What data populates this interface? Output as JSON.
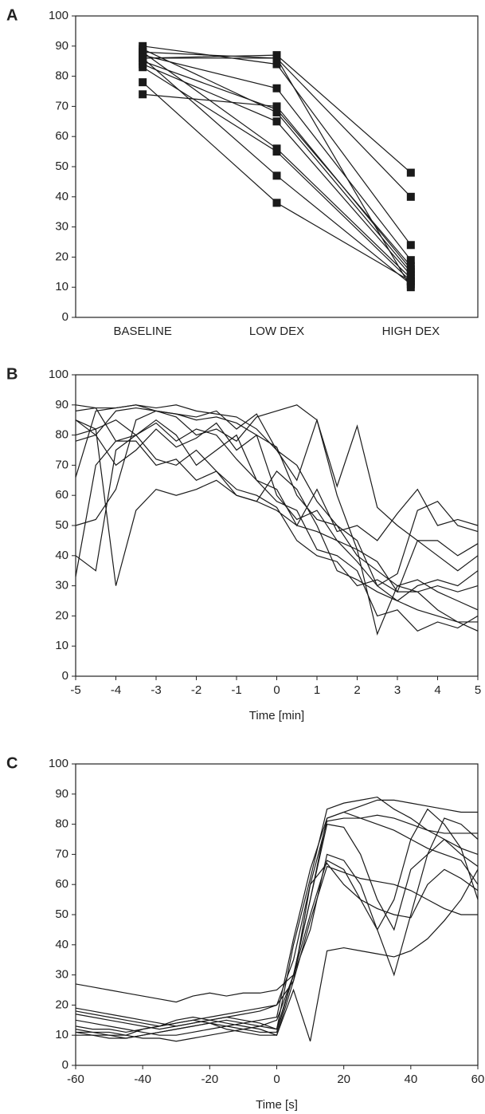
{
  "chart_data": [
    {
      "type": "line",
      "panel_label": "A",
      "marker": "square",
      "color": "#1a1a1a",
      "categories": [
        "BASELINE",
        "LOW DEX",
        "HIGH DEX"
      ],
      "series": [
        {
          "values": [
            86,
            87,
            48
          ]
        },
        {
          "values": [
            88,
            86,
            40
          ]
        },
        {
          "values": [
            90,
            84,
            24
          ]
        },
        {
          "values": [
            87,
            76,
            19
          ]
        },
        {
          "values": [
            85,
            69,
            17
          ]
        },
        {
          "values": [
            89,
            68,
            15
          ]
        },
        {
          "values": [
            84,
            65,
            14
          ]
        },
        {
          "values": [
            88,
            56,
            13
          ]
        },
        {
          "values": [
            83,
            55,
            12
          ]
        },
        {
          "values": [
            86,
            47,
            11
          ]
        },
        {
          "values": [
            78,
            38,
            12
          ]
        },
        {
          "values": [
            74,
            70,
            16
          ]
        },
        {
          "values": [
            86,
            86,
            10
          ]
        }
      ],
      "ylim": [
        0,
        100
      ],
      "yticks": [
        0,
        10,
        20,
        30,
        40,
        50,
        60,
        70,
        80,
        90,
        100
      ]
    },
    {
      "type": "line",
      "panel_label": "B",
      "color": "#1a1a1a",
      "x_label": "Time [min]",
      "x": [
        -5,
        -4.5,
        -4,
        -3.5,
        -3,
        -2.5,
        -2,
        -1.5,
        -1,
        -0.5,
        0,
        0.5,
        1,
        1.5,
        2,
        2.5,
        3,
        3.5,
        4,
        4.5,
        5
      ],
      "series": [
        {
          "values": [
            66,
            88,
            89,
            90,
            88,
            87,
            85,
            86,
            84,
            80,
            76,
            60,
            52,
            50,
            40,
            35,
            30,
            28,
            30,
            28,
            30
          ]
        },
        {
          "values": [
            80,
            82,
            30,
            55,
            62,
            60,
            62,
            65,
            60,
            58,
            55,
            50,
            48,
            45,
            38,
            30,
            25,
            22,
            20,
            18,
            15
          ]
        },
        {
          "values": [
            50,
            52,
            62,
            85,
            88,
            86,
            80,
            82,
            78,
            86,
            88,
            90,
            85,
            60,
            42,
            14,
            30,
            32,
            28,
            25,
            22
          ]
        },
        {
          "values": [
            88,
            89,
            89,
            90,
            89,
            90,
            88,
            87,
            86,
            82,
            75,
            70,
            58,
            50,
            45,
            30,
            34,
            55,
            58,
            50,
            48
          ]
        },
        {
          "values": [
            78,
            80,
            70,
            75,
            82,
            76,
            79,
            84,
            75,
            80,
            60,
            52,
            55,
            45,
            42,
            38,
            28,
            45,
            40,
            35,
            40
          ]
        },
        {
          "values": [
            85,
            82,
            85,
            80,
            84,
            78,
            82,
            80,
            72,
            65,
            62,
            50,
            62,
            48,
            50,
            45,
            54,
            62,
            50,
            52,
            50
          ]
        },
        {
          "values": [
            40,
            35,
            75,
            80,
            72,
            70,
            75,
            68,
            62,
            60,
            56,
            45,
            40,
            38,
            30,
            32,
            28,
            28,
            22,
            18,
            18
          ]
        },
        {
          "values": [
            33,
            70,
            78,
            78,
            70,
            72,
            65,
            68,
            60,
            58,
            68,
            62,
            50,
            35,
            32,
            28,
            25,
            30,
            32,
            30,
            35
          ]
        },
        {
          "values": [
            85,
            80,
            88,
            89,
            88,
            87,
            86,
            88,
            82,
            87,
            75,
            65,
            85,
            63,
            83,
            56,
            50,
            45,
            45,
            40,
            44
          ]
        },
        {
          "values": [
            90,
            89,
            78,
            80,
            85,
            80,
            70,
            75,
            80,
            65,
            58,
            55,
            42,
            40,
            35,
            20,
            22,
            15,
            18,
            16,
            20
          ]
        }
      ],
      "xlim": [
        -5,
        5
      ],
      "xticks": [
        -5,
        -4,
        -3,
        -2,
        -1,
        0,
        1,
        2,
        3,
        4,
        5
      ],
      "ylim": [
        0,
        100
      ],
      "yticks": [
        0,
        10,
        20,
        30,
        40,
        50,
        60,
        70,
        80,
        90,
        100
      ]
    },
    {
      "type": "line",
      "panel_label": "C",
      "color": "#1a1a1a",
      "x_label": "Time [s]",
      "x": [
        -60,
        -55,
        -50,
        -45,
        -40,
        -35,
        -30,
        -25,
        -20,
        -15,
        -10,
        -5,
        0,
        5,
        10,
        15,
        20,
        25,
        30,
        35,
        40,
        45,
        50,
        55,
        60
      ],
      "series": [
        {
          "values": [
            27,
            26,
            25,
            24,
            23,
            22,
            21,
            23,
            24,
            23,
            24,
            24,
            25,
            30,
            55,
            82,
            84,
            86,
            88,
            88,
            87,
            86,
            85,
            84,
            84
          ]
        },
        {
          "values": [
            19,
            18,
            17,
            16,
            15,
            14,
            13,
            14,
            15,
            16,
            17,
            18,
            20,
            35,
            60,
            81,
            82,
            82,
            83,
            82,
            80,
            78,
            77,
            77,
            77
          ]
        },
        {
          "values": [
            11,
            11,
            10,
            10,
            9,
            9,
            8,
            9,
            10,
            11,
            12,
            13,
            15,
            30,
            50,
            68,
            65,
            55,
            45,
            55,
            75,
            85,
            80,
            72,
            70
          ]
        },
        {
          "values": [
            12,
            11,
            11,
            10,
            12,
            13,
            15,
            16,
            15,
            14,
            13,
            12,
            10,
            25,
            8,
            38,
            39,
            38,
            37,
            36,
            38,
            42,
            48,
            55,
            65
          ]
        },
        {
          "values": [
            17,
            16,
            15,
            14,
            13,
            12,
            13,
            14,
            15,
            16,
            15,
            14,
            12,
            40,
            62,
            85,
            87,
            88,
            89,
            85,
            82,
            78,
            75,
            72,
            55
          ]
        },
        {
          "values": [
            10,
            10,
            9,
            9,
            10,
            11,
            12,
            13,
            14,
            15,
            14,
            13,
            12,
            30,
            45,
            70,
            68,
            60,
            45,
            30,
            50,
            70,
            82,
            80,
            75
          ]
        },
        {
          "values": [
            15,
            14,
            13,
            12,
            11,
            10,
            10,
            11,
            12,
            13,
            14,
            15,
            16,
            42,
            65,
            82,
            84,
            82,
            80,
            78,
            75,
            72,
            70,
            68,
            60
          ]
        },
        {
          "values": [
            11,
            10,
            10,
            9,
            10,
            11,
            12,
            13,
            14,
            12,
            11,
            10,
            10,
            28,
            60,
            67,
            60,
            55,
            52,
            50,
            49,
            60,
            65,
            62,
            58
          ]
        },
        {
          "values": [
            18,
            17,
            16,
            15,
            14,
            13,
            14,
            15,
            16,
            17,
            18,
            19,
            20,
            28,
            48,
            66,
            64,
            62,
            61,
            60,
            58,
            55,
            52,
            50,
            50
          ]
        },
        {
          "values": [
            13,
            12,
            12,
            11,
            12,
            13,
            14,
            15,
            14,
            13,
            12,
            11,
            11,
            30,
            55,
            80,
            79,
            70,
            55,
            45,
            65,
            70,
            75,
            70,
            66
          ]
        }
      ],
      "xlim": [
        -60,
        60
      ],
      "xticks": [
        -60,
        -40,
        -20,
        0,
        20,
        40,
        60
      ],
      "ylim": [
        0,
        100
      ],
      "yticks": [
        0,
        10,
        20,
        30,
        40,
        50,
        60,
        70,
        80,
        90,
        100
      ]
    }
  ]
}
